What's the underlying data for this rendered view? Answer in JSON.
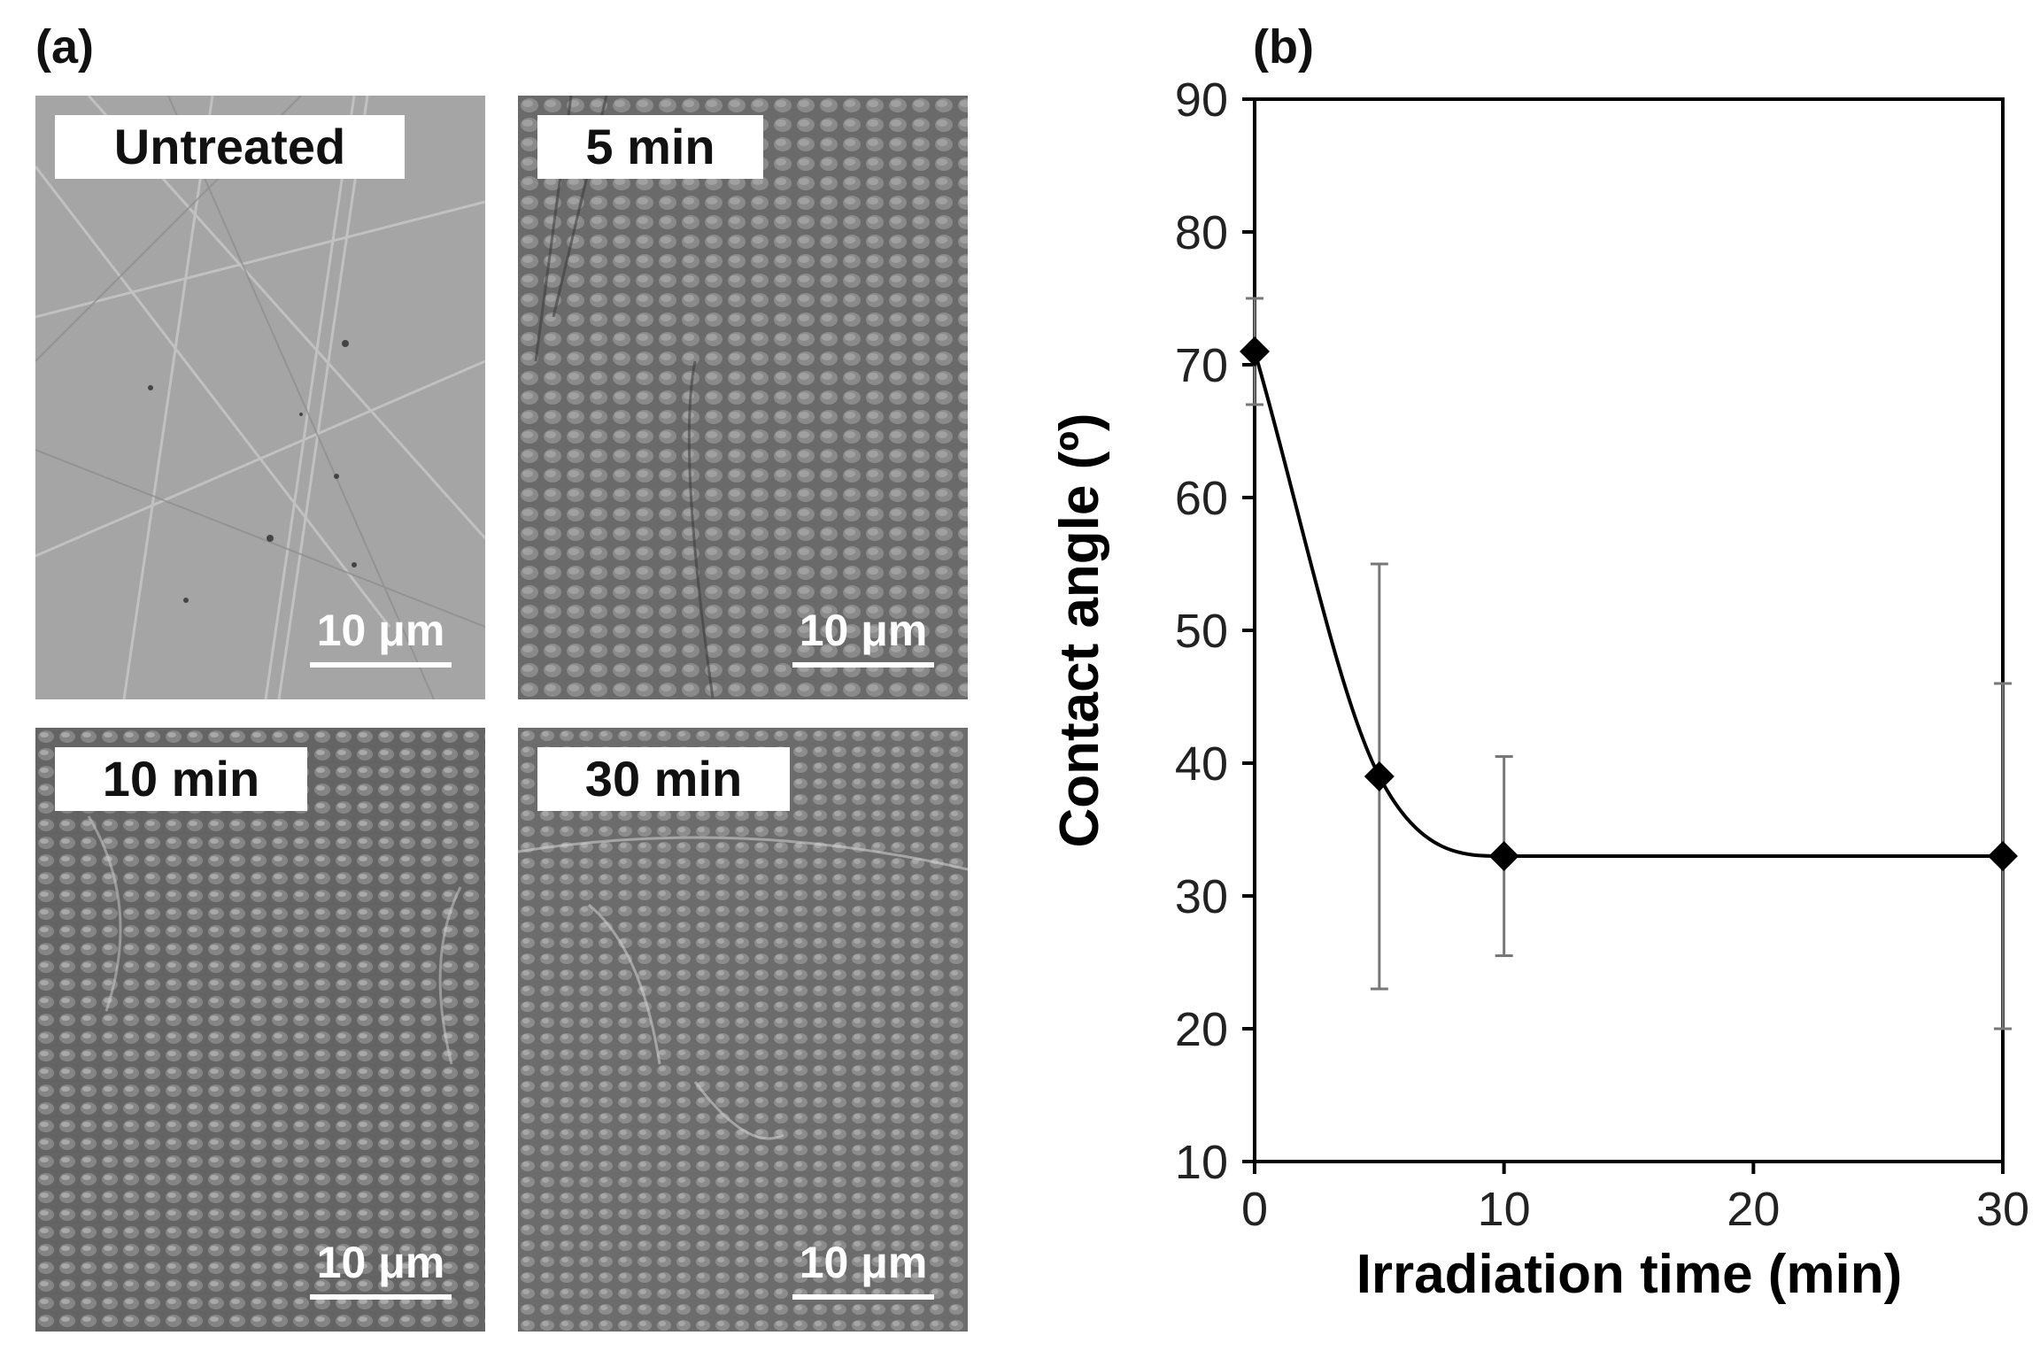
{
  "panels": {
    "a": "(a)",
    "b": "(b)"
  },
  "sem_images": [
    {
      "label": "Untreated",
      "scale": "10 μm"
    },
    {
      "label": "5 min",
      "scale": "10 μm"
    },
    {
      "label": "10 min",
      "scale": "10 μm"
    },
    {
      "label": "30 min",
      "scale": "10 μm"
    }
  ],
  "chart_data": {
    "type": "scatter",
    "title": "",
    "xlabel": "Irradiation time (min)",
    "ylabel": "Contact angle (º)",
    "xlim": [
      0,
      30
    ],
    "ylim": [
      10,
      90
    ],
    "x_ticks": [
      0,
      10,
      20,
      30
    ],
    "y_ticks": [
      10,
      20,
      30,
      40,
      50,
      60,
      70,
      80,
      90
    ],
    "grid": false,
    "smoothed_line": true,
    "marker": "diamond",
    "series": [
      {
        "x": [
          0,
          5,
          10,
          30
        ],
        "y": [
          71,
          39,
          33,
          33
        ],
        "error": [
          4,
          16,
          7.5,
          13
        ]
      }
    ]
  }
}
